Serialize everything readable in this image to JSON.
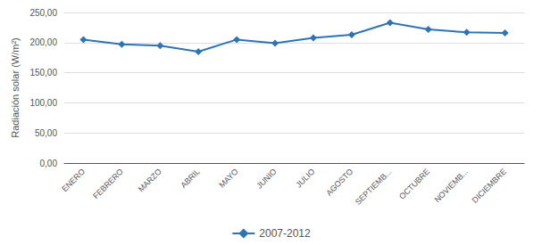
{
  "chart_data": {
    "type": "line",
    "categories": [
      "ENERO",
      "FEBRERO",
      "MARZO",
      "ABRIL",
      "MAYO",
      "JUNIO",
      "JULIO",
      "AGOSTO",
      "SEPTIEMB...",
      "OCTUBRE",
      "NOVIEMB...",
      "DICIEMBRE"
    ],
    "series": [
      {
        "name": "2007-2012",
        "color": "#2E74B5",
        "marker": "diamond",
        "values": [
          205.0,
          197.0,
          195.0,
          185.0,
          205.0,
          199.0,
          208.0,
          213.0,
          233.0,
          222.0,
          217.0,
          216.0
        ]
      }
    ],
    "ylabel": "Radiación solar (W/m²)",
    "ylim": [
      0,
      250
    ],
    "yticks": [
      {
        "value": 0,
        "label": "0,00"
      },
      {
        "value": 50,
        "label": "50,00"
      },
      {
        "value": 100,
        "label": "100,00"
      },
      {
        "value": 150,
        "label": "150,00"
      },
      {
        "value": 200,
        "label": "200,00"
      },
      {
        "value": 250,
        "label": "250,00"
      }
    ],
    "grid": true,
    "legend": "bottom"
  }
}
